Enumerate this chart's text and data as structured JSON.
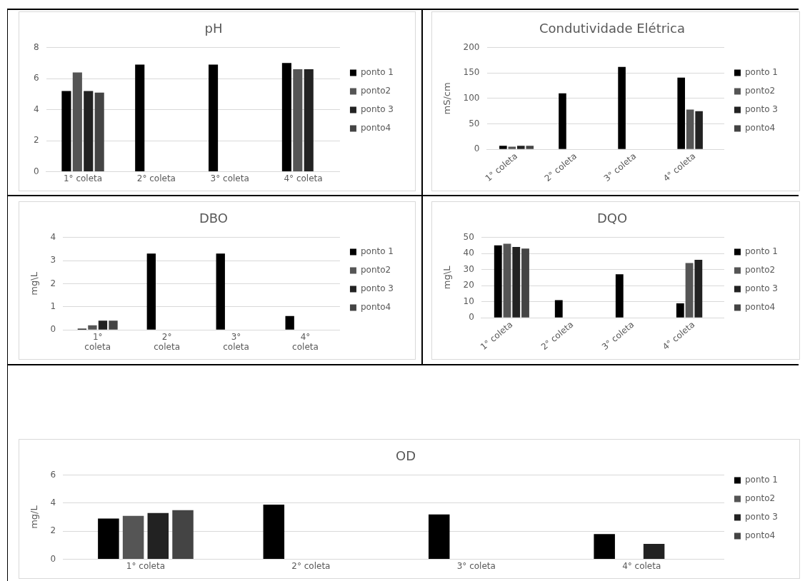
{
  "chart_data": [
    {
      "type": "bar",
      "title": "pH",
      "categories": [
        "1° coleta",
        "2° coleta",
        "3° coleta",
        "4° coleta"
      ],
      "series": [
        {
          "name": "ponto 1",
          "color": "#000000",
          "values": [
            5.2,
            6.9,
            6.9,
            7.0
          ]
        },
        {
          "name": "ponto2",
          "color": "#555555",
          "values": [
            6.4,
            null,
            null,
            6.6
          ]
        },
        {
          "name": "ponto 3",
          "color": "#222222",
          "values": [
            5.2,
            null,
            null,
            6.6
          ]
        },
        {
          "name": "ponto4",
          "color": "#444444",
          "values": [
            5.1,
            null,
            null,
            null
          ]
        }
      ],
      "ylim": [
        0,
        8
      ],
      "yticks": [
        0,
        2,
        4,
        6,
        8
      ],
      "grid": "y",
      "legend": "right"
    },
    {
      "type": "bar",
      "title": "Condutividade Elétrica",
      "ylabel": "mS/cm",
      "categories": [
        "1° coleta",
        "2° coleta",
        "3° coleta",
        "4° coleta"
      ],
      "series": [
        {
          "name": "ponto 1",
          "color": "#000000",
          "values": [
            7,
            110,
            162,
            141
          ]
        },
        {
          "name": "ponto2",
          "color": "#555555",
          "values": [
            5,
            null,
            null,
            78
          ]
        },
        {
          "name": "ponto 3",
          "color": "#222222",
          "values": [
            7,
            null,
            null,
            75
          ]
        },
        {
          "name": "ponto4",
          "color": "#444444",
          "values": [
            7,
            null,
            null,
            null
          ]
        }
      ],
      "ylim": [
        0,
        200
      ],
      "yticks": [
        0,
        50,
        100,
        150,
        200
      ],
      "grid": "y",
      "legend": "right"
    },
    {
      "type": "bar",
      "title": "DBO",
      "ylabel": "mg\\L",
      "categories": [
        "1° coleta",
        "2° coleta",
        "3° coleta",
        "4° coleta"
      ],
      "series": [
        {
          "name": "ponto 1",
          "color": "#000000",
          "values": [
            0.05,
            3.3,
            3.3,
            0.6
          ]
        },
        {
          "name": "ponto2",
          "color": "#555555",
          "values": [
            0.2,
            null,
            null,
            null
          ]
        },
        {
          "name": "ponto 3",
          "color": "#222222",
          "values": [
            0.4,
            null,
            null,
            null
          ]
        },
        {
          "name": "ponto4",
          "color": "#444444",
          "values": [
            0.4,
            null,
            null,
            null
          ]
        }
      ],
      "ylim": [
        0,
        4
      ],
      "yticks": [
        0,
        1,
        2,
        3,
        4
      ],
      "grid": "y",
      "legend": "right"
    },
    {
      "type": "bar",
      "title": "DQO",
      "ylabel": "mg\\L",
      "categories": [
        "1° coleta",
        "2° coleta",
        "3° coleta",
        "4° coleta"
      ],
      "series": [
        {
          "name": "ponto 1",
          "color": "#000000",
          "values": [
            45,
            11,
            27,
            9
          ]
        },
        {
          "name": "ponto2",
          "color": "#555555",
          "values": [
            46,
            null,
            null,
            34
          ]
        },
        {
          "name": "ponto 3",
          "color": "#222222",
          "values": [
            44,
            null,
            null,
            36
          ]
        },
        {
          "name": "ponto4",
          "color": "#444444",
          "values": [
            43,
            null,
            null,
            null
          ]
        }
      ],
      "ylim": [
        0,
        50
      ],
      "yticks": [
        0,
        10,
        20,
        30,
        40,
        50
      ],
      "grid": "y",
      "legend": "right"
    },
    {
      "type": "bar",
      "title": "OD",
      "ylabel": "mg/L",
      "categories": [
        "1° coleta",
        "2° coleta",
        "3° coleta",
        "4° coleta"
      ],
      "series": [
        {
          "name": "ponto 1",
          "color": "#000000",
          "values": [
            2.9,
            3.9,
            3.2,
            1.8
          ]
        },
        {
          "name": "ponto2",
          "color": "#555555",
          "values": [
            3.1,
            null,
            null,
            null
          ]
        },
        {
          "name": "ponto 3",
          "color": "#222222",
          "values": [
            3.3,
            null,
            null,
            1.1
          ]
        },
        {
          "name": "ponto4",
          "color": "#444444",
          "values": [
            3.5,
            null,
            null,
            null
          ]
        }
      ],
      "ylim": [
        0,
        6
      ],
      "yticks": [
        0,
        2,
        4,
        6
      ],
      "grid": "y",
      "legend": "right"
    }
  ]
}
